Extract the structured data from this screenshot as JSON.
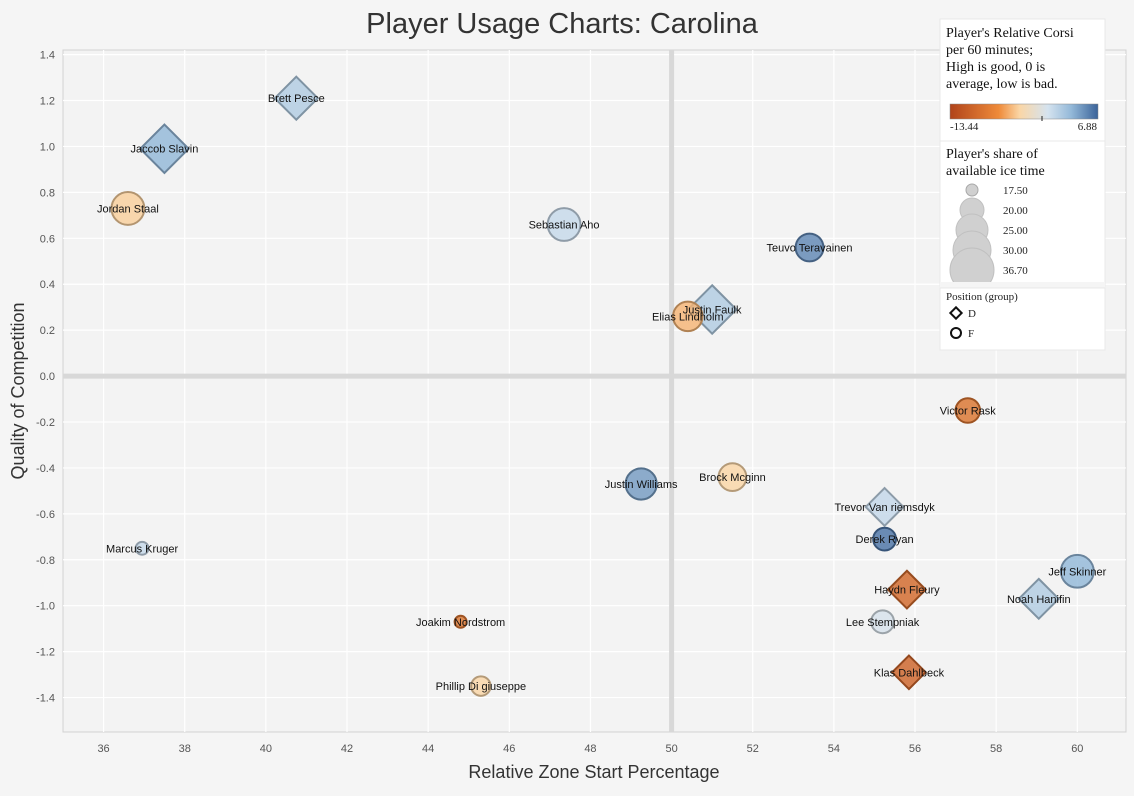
{
  "chart_data": {
    "type": "scatter",
    "title": "Player Usage Charts: Carolina",
    "xlabel": "Relative Zone Start Percentage",
    "ylabel": "Quality of Competition",
    "xlim": [
      35,
      61.2
    ],
    "ylim": [
      -1.55,
      1.42
    ],
    "xticks": [
      36,
      38,
      40,
      42,
      44,
      46,
      48,
      50,
      52,
      54,
      56,
      58,
      60
    ],
    "yticks": [
      -1.4,
      -1.2,
      -1.0,
      -0.8,
      -0.6,
      -0.4,
      -0.2,
      0.0,
      0.2,
      0.4,
      0.6,
      0.8,
      1.0,
      1.2,
      1.4
    ],
    "ytick_labels": [
      "-1.4",
      "-1.2",
      "-1.0",
      "-0.8",
      "-0.6",
      "-0.4",
      "-0.2",
      "0.0",
      "0.2",
      "0.4",
      "0.6",
      "0.8",
      "1.0",
      "1.2",
      "1.4"
    ],
    "grid": true,
    "reference_lines": {
      "x": 50,
      "y": 0
    },
    "points": [
      {
        "name": "Brett Pesce",
        "x": 40.75,
        "y": 1.21,
        "corsi": 1.5,
        "toi": 30.5,
        "position": "D"
      },
      {
        "name": "Jaccob Slavin",
        "x": 37.5,
        "y": 0.99,
        "corsi": 2.5,
        "toi": 33,
        "position": "D"
      },
      {
        "name": "Jordan Staal",
        "x": 36.6,
        "y": 0.73,
        "corsi": -2,
        "toi": 30,
        "position": "F"
      },
      {
        "name": "Sebastian Aho",
        "x": 47.35,
        "y": 0.66,
        "corsi": 0.8,
        "toi": 30,
        "position": "F"
      },
      {
        "name": "Teuvo Teravainen",
        "x": 53.4,
        "y": 0.56,
        "corsi": 5,
        "toi": 27,
        "position": "F"
      },
      {
        "name": "Justin Faulk",
        "x": 51.0,
        "y": 0.29,
        "corsi": 1.5,
        "toi": 33,
        "position": "D"
      },
      {
        "name": "Elias Lindholm",
        "x": 50.4,
        "y": 0.26,
        "corsi": -4,
        "toi": 28,
        "position": "F"
      },
      {
        "name": "Victor Rask",
        "x": 57.3,
        "y": -0.15,
        "corsi": -9,
        "toi": 25,
        "position": "F"
      },
      {
        "name": "Justin Williams",
        "x": 49.25,
        "y": -0.47,
        "corsi": 4,
        "toi": 29,
        "position": "F"
      },
      {
        "name": "Brock Mcginn",
        "x": 51.5,
        "y": -0.44,
        "corsi": -1.5,
        "toi": 27,
        "position": "F"
      },
      {
        "name": "Trevor Van riemsdyk",
        "x": 55.25,
        "y": -0.57,
        "corsi": 0.9,
        "toi": 28,
        "position": "D"
      },
      {
        "name": "Derek Ryan",
        "x": 55.25,
        "y": -0.71,
        "corsi": 6,
        "toi": 24,
        "position": "F"
      },
      {
        "name": "Marcus Kruger",
        "x": 36.95,
        "y": -0.75,
        "corsi": 0.8,
        "toi": 18,
        "position": "F"
      },
      {
        "name": "Jeff Skinner",
        "x": 60.0,
        "y": -0.85,
        "corsi": 2.5,
        "toi": 30,
        "position": "F"
      },
      {
        "name": "Haydn Fleury",
        "x": 55.8,
        "y": -0.93,
        "corsi": -10,
        "toi": 28,
        "position": "D"
      },
      {
        "name": "Noah Hanifin",
        "x": 59.05,
        "y": -0.97,
        "corsi": 1.5,
        "toi": 29,
        "position": "D"
      },
      {
        "name": "Joakim Nordstrom",
        "x": 44.8,
        "y": -1.07,
        "corsi": -9,
        "toi": 17.5,
        "position": "F"
      },
      {
        "name": "Lee Stempniak",
        "x": 55.2,
        "y": -1.07,
        "corsi": 0.2,
        "toi": 24,
        "position": "F"
      },
      {
        "name": "Klas Dahlbeck",
        "x": 55.85,
        "y": -1.29,
        "corsi": -10.5,
        "toi": 26,
        "position": "D"
      },
      {
        "name": "Phillip Di giuseppe",
        "x": 45.3,
        "y": -1.35,
        "corsi": -1.5,
        "toi": 22,
        "position": "F"
      }
    ],
    "legend": {
      "placement": "top-right",
      "color": {
        "title_lines": [
          "Player's Relative Corsi",
          "per 60 minutes;",
          "High is good, 0 is",
          "average, low is bad."
        ],
        "min": -13.44,
        "max": 6.88,
        "min_label": "-13.44",
        "max_label": "6.88",
        "colors": [
          "#b0431a",
          "#ef8b3a",
          "#fad6a6",
          "#d5e3ef",
          "#93b8d8",
          "#3a6399"
        ]
      },
      "size": {
        "title_lines": [
          "Player's share of",
          "available ice time"
        ],
        "entries": [
          "17.50",
          "20.00",
          "25.00",
          "30.00",
          "36.70"
        ],
        "values": [
          17.5,
          20,
          25,
          30,
          36.7
        ]
      },
      "shape": {
        "title": "Position (group)",
        "entries": [
          {
            "label": "D",
            "icon": "diamond-icon"
          },
          {
            "label": "F",
            "icon": "circle-icon"
          }
        ]
      }
    }
  }
}
